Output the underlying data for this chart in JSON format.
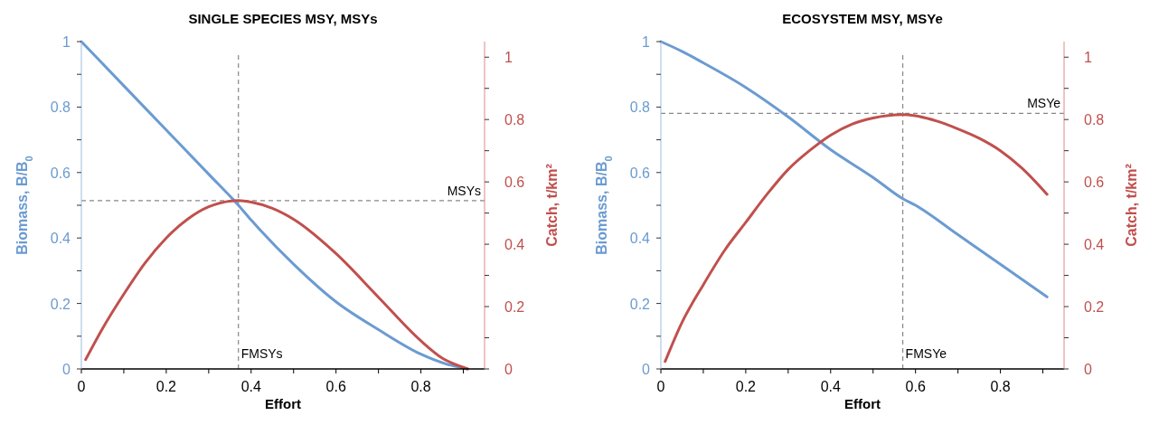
{
  "chart_data": [
    {
      "type": "line",
      "title": "SINGLE SPECIES MSY, MSYs",
      "xlabel": "Effort",
      "ylabel": "Biomass, B/B$_{0}$",
      "y2label": "Catch, t/km²",
      "xlim": [
        0,
        0.95
      ],
      "xticks": [
        0,
        {
          "value": 0.1,
          "label": null
        },
        0.2,
        {
          "value": 0.3,
          "label": null
        },
        0.4,
        {
          "value": 0.5,
          "label": null
        },
        0.6,
        {
          "value": 0.7,
          "label": null
        },
        0.8,
        {
          "value": 0.9,
          "label": null
        }
      ],
      "ylim": [
        0,
        1
      ],
      "yticks": [
        0,
        {
          "value": 0.1,
          "label": null
        },
        0.2,
        {
          "value": 0.3,
          "label": null
        },
        0.4,
        {
          "value": 0.5,
          "label": null
        },
        0.6,
        {
          "value": 0.7,
          "label": null
        },
        0.8,
        {
          "value": 0.9,
          "label": null
        },
        1
      ],
      "y2lim": [
        0,
        1.05
      ],
      "y2ticks": [
        0,
        {
          "value": 0.1,
          "label": null
        },
        0.2,
        {
          "value": 0.3,
          "label": null
        },
        0.4,
        {
          "value": 0.5,
          "label": null
        },
        0.6,
        {
          "value": 0.7,
          "label": null
        },
        0.8,
        {
          "value": 0.9,
          "label": null
        },
        1
      ],
      "grid": false,
      "marker": "none",
      "line_style": "solid",
      "series": [
        {
          "color": "#6b9bd1",
          "x": [
            0,
            0.1,
            0.2,
            0.3,
            0.37,
            0.4,
            0.5,
            0.6,
            0.7,
            0.8,
            0.86,
            0.9,
            0.91
          ],
          "values": [
            1,
            0.865,
            0.73,
            0.595,
            0.5,
            0.455,
            0.32,
            0.205,
            0.12,
            0.045,
            0.015,
            0.003,
            0
          ]
        },
        {
          "color": "#c0504d",
          "axis": "y2",
          "x": [
            0.01,
            0.05,
            0.1,
            0.15,
            0.2,
            0.25,
            0.3,
            0.37,
            0.4,
            0.45,
            0.5,
            0.6,
            0.7,
            0.8,
            0.85,
            0.9,
            0.91
          ],
          "values": [
            0.03,
            0.13,
            0.24,
            0.34,
            0.42,
            0.48,
            0.52,
            0.54,
            0.535,
            0.515,
            0.48,
            0.37,
            0.23,
            0.09,
            0.035,
            0.005,
            0
          ]
        }
      ],
      "ref_lines": [
        {
          "axis": "x",
          "value": 0.37,
          "label": "FMSYs",
          "line_style": "dashed",
          "color": "#888888"
        },
        {
          "axis": "y2",
          "value": 0.54,
          "label": "MSYs",
          "line_style": "dashed",
          "color": "#888888"
        }
      ]
    },
    {
      "type": "line",
      "title": "ECOSYSTEM MSY, MSYe",
      "xlabel": "Effort",
      "ylabel": "Biomass, B/B$_{0}$",
      "y2label": "Catch, t/km²",
      "xlim": [
        0,
        0.95
      ],
      "xticks": [
        0,
        {
          "value": 0.1,
          "label": null
        },
        0.2,
        {
          "value": 0.3,
          "label": null
        },
        0.4,
        {
          "value": 0.5,
          "label": null
        },
        0.6,
        {
          "value": 0.7,
          "label": null
        },
        0.8,
        {
          "value": 0.9,
          "label": null
        }
      ],
      "ylim": [
        0,
        1
      ],
      "yticks": [
        0,
        {
          "value": 0.1,
          "label": null
        },
        0.2,
        {
          "value": 0.3,
          "label": null
        },
        0.4,
        {
          "value": 0.5,
          "label": null
        },
        0.6,
        {
          "value": 0.7,
          "label": null
        },
        0.8,
        {
          "value": 0.9,
          "label": null
        },
        1
      ],
      "y2lim": [
        0,
        1.05
      ],
      "y2ticks": [
        0,
        {
          "value": 0.1,
          "label": null
        },
        0.2,
        {
          "value": 0.3,
          "label": null
        },
        0.4,
        {
          "value": 0.5,
          "label": null
        },
        0.6,
        {
          "value": 0.7,
          "label": null
        },
        0.8,
        {
          "value": 0.9,
          "label": null
        },
        1
      ],
      "grid": false,
      "marker": "none",
      "line_style": "solid",
      "series": [
        {
          "color": "#6b9bd1",
          "x": [
            0,
            0.05,
            0.1,
            0.2,
            0.3,
            0.4,
            0.5,
            0.57,
            0.6,
            0.7,
            0.8,
            0.91
          ],
          "values": [
            1,
            0.97,
            0.935,
            0.86,
            0.77,
            0.67,
            0.585,
            0.52,
            0.5,
            0.41,
            0.32,
            0.22
          ]
        },
        {
          "color": "#c0504d",
          "axis": "y2",
          "x": [
            0.01,
            0.05,
            0.1,
            0.15,
            0.2,
            0.25,
            0.3,
            0.35,
            0.4,
            0.45,
            0.5,
            0.57,
            0.6,
            0.65,
            0.7,
            0.75,
            0.8,
            0.85,
            0.91
          ],
          "values": [
            0.024,
            0.15,
            0.27,
            0.38,
            0.47,
            0.56,
            0.64,
            0.7,
            0.75,
            0.785,
            0.805,
            0.816,
            0.812,
            0.795,
            0.77,
            0.74,
            0.7,
            0.645,
            0.56
          ]
        }
      ],
      "ref_lines": [
        {
          "axis": "x",
          "value": 0.57,
          "label": "FMSYe",
          "line_style": "dashed",
          "color": "#888888"
        },
        {
          "axis": "y2",
          "value": 0.82,
          "label": "MSYe",
          "line_style": "dashed",
          "color": "#888888"
        }
      ]
    }
  ]
}
